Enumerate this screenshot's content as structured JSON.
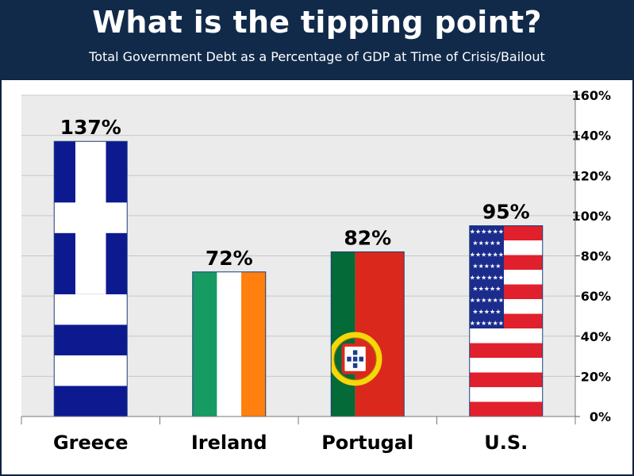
{
  "header": {
    "title": "What is the tipping point?",
    "subtitle": "Total Government Debt as a Percentage of GDP at Time of Crisis/Bailout"
  },
  "colors": {
    "background": "#0f2341",
    "plot_area": "#ebebeb",
    "gridline": "#c8c8c8",
    "greece_blue": "#0d1a8f",
    "ireland_green": "#169b62",
    "ireland_orange": "#ff7f0f",
    "portugal_green": "#046a38",
    "portugal_red": "#da291c",
    "us_red": "#e0202d",
    "us_blue": "#1b2c8c"
  },
  "chart_data": {
    "type": "bar",
    "categories": [
      "Greece",
      "Ireland",
      "Portugal",
      "U.S."
    ],
    "values": [
      137,
      72,
      82,
      95
    ],
    "data_labels": [
      "137%",
      "72%",
      "82%",
      "95%"
    ],
    "bar_fills": [
      "greece-flag",
      "ireland-flag",
      "portugal-flag",
      "us-flag"
    ],
    "ylim": [
      0,
      160
    ],
    "y_ticks": [
      0,
      20,
      40,
      60,
      80,
      100,
      120,
      140,
      160
    ],
    "y_tick_labels": [
      "0%",
      "20%",
      "40%",
      "60%",
      "80%",
      "100%",
      "120%",
      "140%",
      "160%"
    ],
    "y_axis_side": "right",
    "grid": true
  }
}
